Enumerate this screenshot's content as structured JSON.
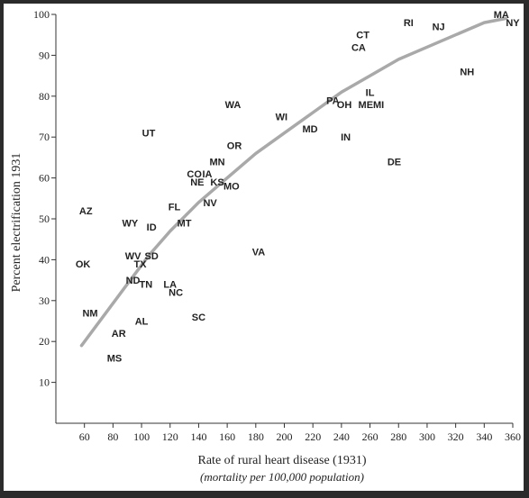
{
  "chart_data": {
    "type": "scatter",
    "title": "",
    "xlabel": "Rate of rural heart disease (1931)",
    "xlabel_sub": "(mortality per 100,000 population)",
    "ylabel": "Percent electrification 1931",
    "xlim": [
      40,
      360
    ],
    "ylim": [
      0,
      100
    ],
    "x_ticks": [
      60,
      80,
      100,
      120,
      140,
      160,
      180,
      200,
      220,
      240,
      260,
      280,
      300,
      320,
      340,
      360
    ],
    "y_ticks": [
      10,
      20,
      30,
      40,
      50,
      60,
      70,
      80,
      90,
      100
    ],
    "grid": false,
    "colors": {
      "curve": "#a9a9a9",
      "text": "#222222",
      "frame": "#2b2b2b"
    },
    "points": [
      {
        "label": "MA",
        "x": 352,
        "y": 100
      },
      {
        "label": "NY",
        "x": 360,
        "y": 98
      },
      {
        "label": "RI",
        "x": 287,
        "y": 98
      },
      {
        "label": "NJ",
        "x": 308,
        "y": 97
      },
      {
        "label": "CT",
        "x": 255,
        "y": 95
      },
      {
        "label": "CA",
        "x": 252,
        "y": 92
      },
      {
        "label": "NH",
        "x": 328,
        "y": 86
      },
      {
        "label": "IL",
        "x": 260,
        "y": 81
      },
      {
        "label": "PA",
        "x": 234,
        "y": 79
      },
      {
        "label": "MI",
        "x": 266,
        "y": 78
      },
      {
        "label": "OH",
        "x": 242,
        "y": 78
      },
      {
        "label": "ME",
        "x": 257,
        "y": 78
      },
      {
        "label": "WA",
        "x": 164,
        "y": 78
      },
      {
        "label": "WI",
        "x": 198,
        "y": 75
      },
      {
        "label": "MD",
        "x": 218,
        "y": 72
      },
      {
        "label": "UT",
        "x": 105,
        "y": 71
      },
      {
        "label": "IN",
        "x": 243,
        "y": 70
      },
      {
        "label": "OR",
        "x": 165,
        "y": 68
      },
      {
        "label": "DE",
        "x": 277,
        "y": 64
      },
      {
        "label": "MN",
        "x": 153,
        "y": 64
      },
      {
        "label": "CO",
        "x": 137,
        "y": 61
      },
      {
        "label": "IA",
        "x": 146,
        "y": 61
      },
      {
        "label": "NE",
        "x": 139,
        "y": 59
      },
      {
        "label": "KS",
        "x": 153,
        "y": 59
      },
      {
        "label": "MO",
        "x": 163,
        "y": 58
      },
      {
        "label": "NV",
        "x": 148,
        "y": 54
      },
      {
        "label": "FL",
        "x": 123,
        "y": 53
      },
      {
        "label": "AZ",
        "x": 61,
        "y": 52
      },
      {
        "label": "WY",
        "x": 92,
        "y": 49
      },
      {
        "label": "ID",
        "x": 107,
        "y": 48
      },
      {
        "label": "MT",
        "x": 130,
        "y": 49
      },
      {
        "label": "VA",
        "x": 182,
        "y": 42
      },
      {
        "label": "WV",
        "x": 94,
        "y": 41
      },
      {
        "label": "SD",
        "x": 107,
        "y": 41
      },
      {
        "label": "TX",
        "x": 99,
        "y": 39
      },
      {
        "label": "OK",
        "x": 59,
        "y": 39
      },
      {
        "label": "ND",
        "x": 94,
        "y": 35
      },
      {
        "label": "TN",
        "x": 103,
        "y": 34
      },
      {
        "label": "LA",
        "x": 120,
        "y": 34
      },
      {
        "label": "NC",
        "x": 124,
        "y": 32
      },
      {
        "label": "NM",
        "x": 64,
        "y": 27
      },
      {
        "label": "AL",
        "x": 100,
        "y": 25
      },
      {
        "label": "SC",
        "x": 140,
        "y": 26
      },
      {
        "label": "AR",
        "x": 84,
        "y": 22
      },
      {
        "label": "MS",
        "x": 81,
        "y": 16
      }
    ],
    "trend_curve": {
      "x": [
        58,
        75,
        90,
        105,
        120,
        140,
        160,
        180,
        200,
        220,
        240,
        260,
        280,
        300,
        320,
        340,
        355
      ],
      "y": [
        19,
        27,
        34,
        41,
        47,
        54,
        60,
        66,
        71,
        76,
        81,
        85,
        89,
        92,
        95,
        98,
        99
      ]
    }
  }
}
